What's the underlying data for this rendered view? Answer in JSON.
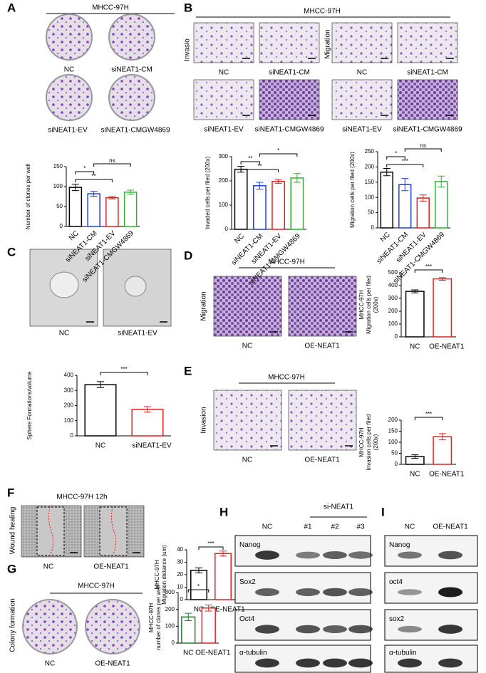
{
  "panels": {
    "A": {
      "letter": "A",
      "header": "MHCC-97H",
      "images": [
        "NC",
        "siNEAT1-CM",
        "siNEAT1-EV",
        "siNEAT1-CMGW4869"
      ]
    },
    "B": {
      "letter": "B",
      "header": "MHCC-97H",
      "rows": [
        "Invasio",
        "Migration"
      ],
      "images": [
        "NC",
        "siNEAT1-CM",
        "NC",
        "siNEAT1-CM",
        "siNEAT1-EV",
        "siNEAT1-CMGW4869",
        "siNEAT1-EV",
        "siNEAT1-CMGW4869"
      ]
    },
    "C": {
      "letter": "C",
      "images": [
        "NC",
        "siNEAT1-EV"
      ]
    },
    "D": {
      "letter": "D",
      "header": "MHCC-97H",
      "side": "Migration",
      "images": [
        "NC",
        "OE-NEAT1"
      ]
    },
    "E": {
      "letter": "E",
      "header": "MHCC-97H",
      "side": "Invasion",
      "images": [
        "NC",
        "OE-NEAT1"
      ]
    },
    "F": {
      "letter": "F",
      "header": "MHCC-97H  12h",
      "side": "Wound healing",
      "images": [
        "NC",
        "OE-NEAT1"
      ]
    },
    "G": {
      "letter": "G",
      "header": "MHCC-97H",
      "side": "Colony formation",
      "images": [
        "NC",
        "OE-NEAT1"
      ]
    },
    "H": {
      "letter": "H",
      "header": "si-NEAT1",
      "lanes": [
        "NC",
        "#1",
        "#2",
        "#3"
      ],
      "rows": [
        "Nanog",
        "Sox2",
        "Oct4",
        "α-tubulin"
      ]
    },
    "I": {
      "letter": "I",
      "lanes": [
        "NC",
        "OE-NEAT1"
      ],
      "rows": [
        "Nanog",
        "oct4",
        "sox2",
        "α-tubulin"
      ]
    }
  },
  "chart_data": [
    {
      "type": "bar",
      "y_label": [
        "Number of clones per well"
      ],
      "categories": [
        "NC",
        "siNEAT1-CM",
        "siNEAT1-EV",
        "siNEAT1-CMGW4869"
      ],
      "values": [
        98,
        82,
        72,
        86
      ],
      "errors": [
        8,
        6,
        3,
        5
      ],
      "colors": [
        "#000000",
        "#1f3fd8",
        "#e02020",
        "#2cb52c"
      ],
      "ylim": [
        0,
        150
      ],
      "yticks": [
        0,
        50,
        100,
        150
      ],
      "significance": [
        "**",
        "*",
        "ns"
      ]
    },
    {
      "type": "bar",
      "y_label": [
        "Invaded cells per filed (200x)"
      ],
      "categories": [
        "NC",
        "siNEAT1-CM",
        "siNEAT1-EV",
        "siNEAT1-CMGW4869"
      ],
      "values": [
        248,
        180,
        198,
        212
      ],
      "errors": [
        12,
        14,
        8,
        18
      ],
      "colors": [
        "#000000",
        "#1f3fd8",
        "#e02020",
        "#2cb52c"
      ],
      "ylim": [
        0,
        300
      ],
      "yticks": [
        0,
        100,
        200,
        300
      ],
      "significance": [
        "**",
        "**",
        "*"
      ]
    },
    {
      "type": "bar",
      "y_label": [
        "Migration cells per filed (200x)"
      ],
      "categories": [
        "NC",
        "siNEAT1-CM",
        "siNEAT1-EV",
        "siNEAT1-CMGW4869"
      ],
      "values": [
        183,
        142,
        98,
        152
      ],
      "errors": [
        12,
        20,
        10,
        18
      ],
      "colors": [
        "#000000",
        "#1f3fd8",
        "#e02020",
        "#2cb52c"
      ],
      "ylim": [
        0,
        250
      ],
      "yticks": [
        0,
        50,
        100,
        150,
        200,
        250
      ],
      "significance": [
        "***",
        "*",
        "ns"
      ]
    },
    {
      "type": "bar",
      "y_label": [
        "Sphere Formations/volume"
      ],
      "categories": [
        "NC",
        "siNEAT1-EV"
      ],
      "values": [
        338,
        175
      ],
      "errors": [
        20,
        18
      ],
      "colors": [
        "#000000",
        "#e02020"
      ],
      "ylim": [
        0,
        400
      ],
      "yticks": [
        0,
        100,
        200,
        300,
        400
      ],
      "significance": [
        "***"
      ]
    },
    {
      "type": "bar",
      "y_label": [
        "MHCC-97H",
        "Migration cells per filed",
        "(200x)"
      ],
      "categories": [
        "NC",
        "OE-NEAT1"
      ],
      "values": [
        355,
        452
      ],
      "errors": [
        12,
        10
      ],
      "colors": [
        "#000000",
        "#e02020"
      ],
      "ylim": [
        0,
        500
      ],
      "yticks": [
        0,
        100,
        200,
        300,
        400,
        500
      ],
      "significance": [
        "***"
      ]
    },
    {
      "type": "bar",
      "y_label": [
        "MHCC-97H",
        "Invasion cells per filed",
        "(200x)"
      ],
      "categories": [
        "NC",
        "OE-NEAT1"
      ],
      "values": [
        35,
        125
      ],
      "errors": [
        8,
        14
      ],
      "colors": [
        "#000000",
        "#e02020"
      ],
      "ylim": [
        0,
        200
      ],
      "yticks": [
        0,
        50,
        100,
        150,
        200
      ],
      "significance": [
        "***"
      ]
    },
    {
      "type": "bar",
      "y_label": [
        "MHCC-97H",
        "Migration distance (um)"
      ],
      "categories": [
        "NC",
        "OE-NEAT1"
      ],
      "values": [
        23.5,
        37
      ],
      "errors": [
        2,
        2
      ],
      "colors": [
        "#000000",
        "#e02020"
      ],
      "ylim": [
        0,
        40
      ],
      "yticks": [
        0,
        10,
        20,
        30,
        40
      ],
      "significance": [
        "***"
      ]
    },
    {
      "type": "bar",
      "y_label": [
        "MHCC-97H",
        "number of clones per well"
      ],
      "categories": [
        "NC",
        "OE-NEAT1"
      ],
      "values": [
        155,
        208
      ],
      "errors": [
        22,
        18
      ],
      "colors": [
        "#2c7a2c",
        "#e02020"
      ],
      "ylim": [
        0,
        300
      ],
      "yticks": [
        0,
        100,
        200,
        300
      ],
      "significance": [
        "*"
      ]
    }
  ]
}
